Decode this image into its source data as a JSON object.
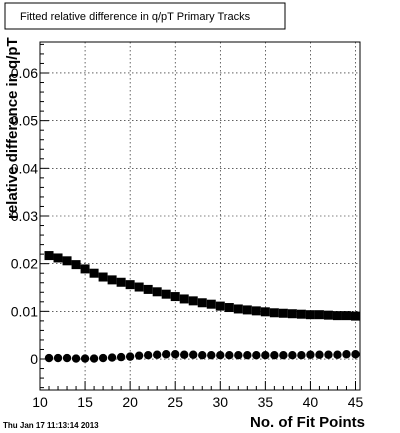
{
  "timestamp": "Thu Jan 17 11:13:14 2013",
  "chart_data": {
    "type": "scatter",
    "title": "Fitted relative difference in q/pT Primary Tracks",
    "xlabel": "No. of Fit Points",
    "ylabel": "relative difference in q/pT",
    "xlim": [
      10,
      45.5
    ],
    "ylim": [
      -0.0065,
      0.0665
    ],
    "xticks": [
      10,
      15,
      20,
      25,
      30,
      35,
      40,
      45
    ],
    "xtick_labels": [
      "10",
      "15",
      "20",
      "25",
      "30",
      "35",
      "40",
      "45"
    ],
    "yticks": [
      0,
      0.01,
      0.02,
      0.03,
      0.04,
      0.05,
      0.06
    ],
    "ytick_labels": [
      "0",
      "0.01",
      "0.02",
      "0.03",
      "0.04",
      "0.05",
      "0.06"
    ],
    "grid": true,
    "legend": "none",
    "series": [
      {
        "marker": "square",
        "color": "#000000",
        "x": [
          11,
          12,
          13,
          14,
          15,
          16,
          17,
          18,
          19,
          20,
          21,
          22,
          23,
          24,
          25,
          26,
          27,
          28,
          29,
          30,
          31,
          32,
          33,
          34,
          35,
          36,
          37,
          38,
          39,
          40,
          41,
          42,
          43,
          44,
          45
        ],
        "values": [
          0.0217,
          0.0212,
          0.0206,
          0.0198,
          0.0189,
          0.018,
          0.0172,
          0.0166,
          0.0161,
          0.0156,
          0.0151,
          0.0146,
          0.0141,
          0.0136,
          0.0131,
          0.0126,
          0.0122,
          0.0118,
          0.0115,
          0.0111,
          0.0108,
          0.0105,
          0.0103,
          0.0101,
          0.0099,
          0.0097,
          0.0096,
          0.0095,
          0.0094,
          0.0093,
          0.0093,
          0.0092,
          0.0091,
          0.0091,
          0.009
        ]
      },
      {
        "marker": "circle",
        "color": "#000000",
        "x": [
          11,
          12,
          13,
          14,
          15,
          16,
          17,
          18,
          19,
          20,
          21,
          22,
          23,
          24,
          25,
          26,
          27,
          28,
          29,
          30,
          31,
          32,
          33,
          34,
          35,
          36,
          37,
          38,
          39,
          40,
          41,
          42,
          43,
          44,
          45
        ],
        "values": [
          0.0002,
          0.0002,
          0.0002,
          0.0001,
          0.0001,
          0.0001,
          0.0002,
          0.0003,
          0.0004,
          0.0005,
          0.0007,
          0.0008,
          0.0009,
          0.001,
          0.001,
          0.0009,
          0.0009,
          0.0008,
          0.0008,
          0.0008,
          0.0008,
          0.0008,
          0.0008,
          0.0008,
          0.0008,
          0.0008,
          0.0008,
          0.0008,
          0.0008,
          0.0009,
          0.0009,
          0.0009,
          0.0009,
          0.001,
          0.001
        ]
      }
    ]
  }
}
